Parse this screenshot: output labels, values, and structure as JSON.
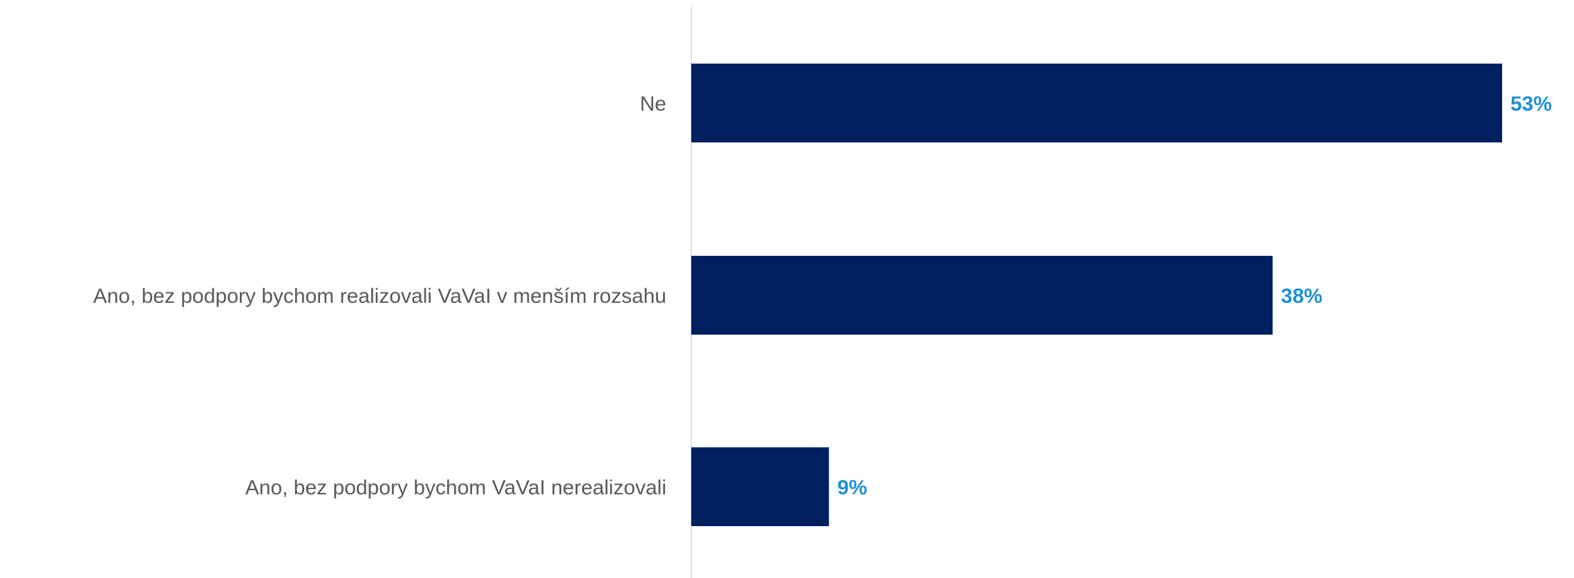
{
  "chart_data": {
    "type": "bar",
    "orientation": "horizontal",
    "categories": [
      "Ne",
      "Ano, bez podpory bychom realizovali VaVaI v menším rozsahu",
      "Ano, bez podpory bychom VaVaI nerealizovali"
    ],
    "values": [
      53,
      38,
      9
    ],
    "value_labels": [
      "53%",
      "38%",
      "9%"
    ],
    "unit": "%",
    "xlim": [
      0,
      53
    ],
    "grid": false,
    "legend": "none",
    "title": "",
    "xlabel": "",
    "ylabel": ""
  },
  "colors": {
    "bar": "#002060",
    "value_label": "#1e90d6",
    "category_label": "#595959",
    "axis_line": "#d6e4f0"
  }
}
